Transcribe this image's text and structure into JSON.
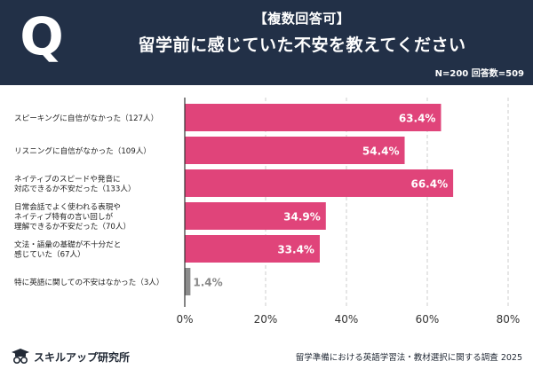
{
  "header": {
    "q_mark": "Q",
    "subtitle": "【複数回答可】",
    "title": "留学前に感じていた不安を教えてください",
    "sample_note": "N=200 回答数=509"
  },
  "colors": {
    "header_bg": "#223047",
    "bar": "#E0447A",
    "bar_last": "#8C8C8C",
    "grid": "#CCCCCC",
    "axis": "#333333"
  },
  "chart_data": {
    "type": "bar",
    "orientation": "horizontal",
    "title": "留学前に感じていた不安を教えてください",
    "categories": [
      [
        "スピーキングに自信がなかった（127人）"
      ],
      [
        "リスニングに自信がなかった（109人）"
      ],
      [
        "ネイティブのスピードや発音に",
        "対応できるか不安だった（133人）"
      ],
      [
        "日常会話でよく使われる表現や",
        "ネイティブ特有の言い回しが",
        "理解できるか不安だった（70人）"
      ],
      [
        "文法・語彙の基礎が不十分だと",
        "感じていた（67人）"
      ],
      [
        "特に英語に関しての不安はなかった（3人）"
      ]
    ],
    "values": [
      63.4,
      54.4,
      66.4,
      34.9,
      33.4,
      1.4
    ],
    "value_labels": [
      "63.4%",
      "54.4%",
      "66.4%",
      "34.9%",
      "33.4%",
      "1.4%"
    ],
    "xlim": [
      0,
      80
    ],
    "ticks": [
      0,
      20,
      40,
      60,
      80
    ],
    "tick_labels": [
      "0%",
      "20%",
      "40%",
      "60%",
      "80%"
    ],
    "grid": true
  },
  "footer": {
    "logo_text": "スキルアップ研究所",
    "logo_icon": "graduation-cap-glasses-icon",
    "source": "留学準備における英語学習法・教材選択に関する調査 2025"
  }
}
